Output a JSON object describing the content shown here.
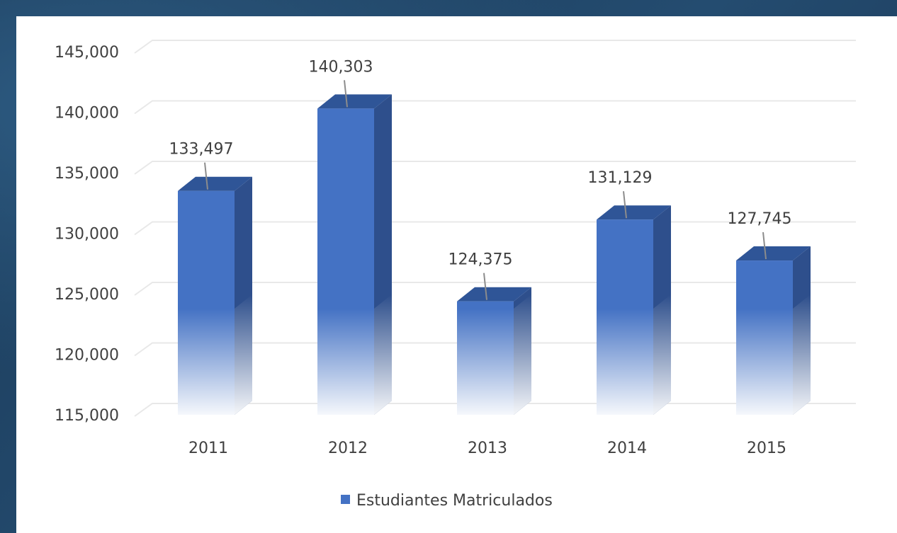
{
  "chart_data": {
    "type": "bar",
    "style": "3d-column",
    "categories": [
      "2011",
      "2012",
      "2013",
      "2014",
      "2015"
    ],
    "series": [
      {
        "name": "Estudiantes Matriculados",
        "values": [
          133497,
          140303,
          124375,
          131129,
          127745
        ],
        "color": "#4472c4"
      }
    ],
    "data_labels": [
      "133,497",
      "140,303",
      "124,375",
      "131,129",
      "127,745"
    ],
    "y_ticks": [
      "115,000",
      "120,000",
      "125,000",
      "130,000",
      "135,000",
      "140,000",
      "145,000"
    ],
    "ylim": [
      115000,
      145000
    ],
    "grid": true,
    "legend_position": "bottom",
    "colors": {
      "bar_front": "#4472c4",
      "bar_side": "#2e4f8c",
      "bar_top": "#2f5597",
      "grid": "#e8e8e8",
      "text": "#404040",
      "leader": "#8c8c8c"
    }
  }
}
